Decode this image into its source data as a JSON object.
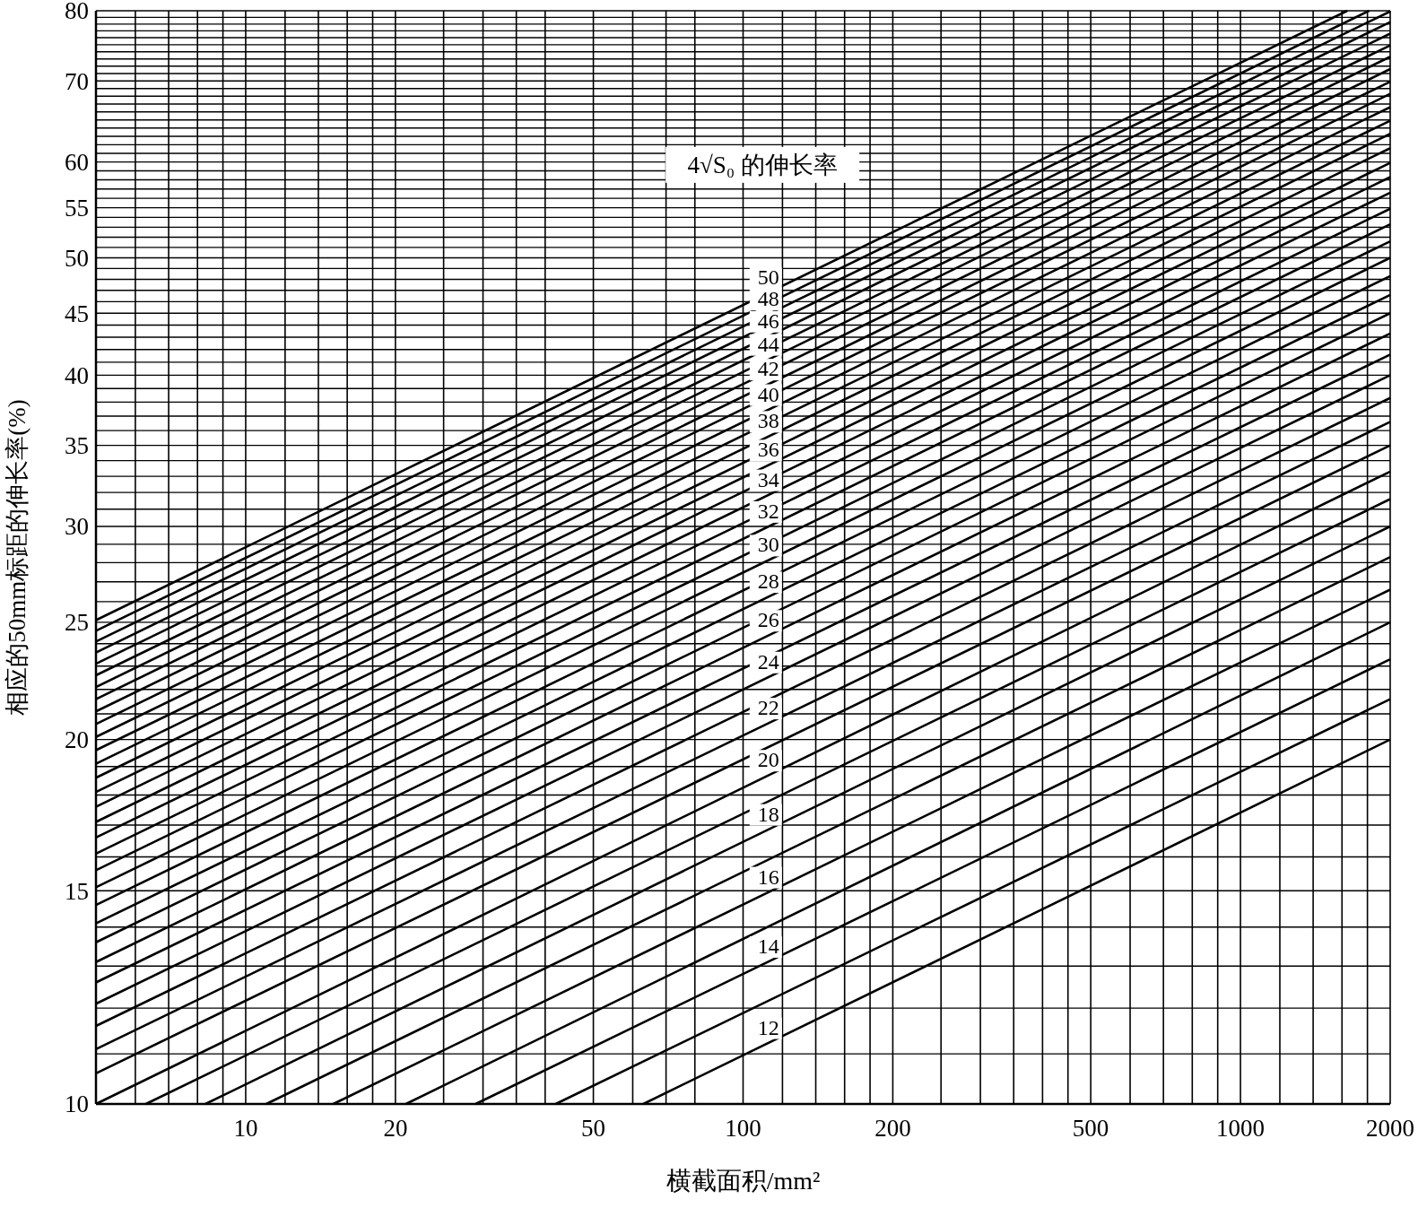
{
  "chart_data": {
    "type": "line",
    "xlabel": "横截面积/mm²",
    "ylabel": "相应的50mm标距的伸长率(%)",
    "annotations": [
      "4√S₀ 的伸长率"
    ],
    "log": "xy",
    "grid": true,
    "xlim": [
      5,
      2000
    ],
    "ylim": [
      10,
      80
    ],
    "xticks": [
      {
        "value": 6,
        "label": null
      },
      {
        "value": 7,
        "label": null
      },
      {
        "value": 8,
        "label": null
      },
      {
        "value": 9,
        "label": null
      },
      10,
      {
        "value": 12,
        "label": null
      },
      {
        "value": 14,
        "label": null
      },
      {
        "value": 16,
        "label": null
      },
      {
        "value": 18,
        "label": null
      },
      20,
      {
        "value": 25,
        "label": null
      },
      {
        "value": 30,
        "label": null
      },
      {
        "value": 35,
        "label": null
      },
      {
        "value": 40,
        "label": null
      },
      50,
      {
        "value": 60,
        "label": null
      },
      {
        "value": 70,
        "label": null
      },
      {
        "value": 80,
        "label": null
      },
      100,
      {
        "value": 120,
        "label": null
      },
      {
        "value": 140,
        "label": null
      },
      {
        "value": 160,
        "label": null
      },
      {
        "value": 180,
        "label": null
      },
      200,
      {
        "value": 250,
        "label": null
      },
      {
        "value": 300,
        "label": null
      },
      {
        "value": 350,
        "label": null
      },
      {
        "value": 400,
        "label": null
      },
      {
        "value": 450,
        "label": null
      },
      500,
      {
        "value": 600,
        "label": null
      },
      {
        "value": 700,
        "label": null
      },
      {
        "value": 800,
        "label": null
      },
      {
        "value": 900,
        "label": null
      },
      1000,
      {
        "value": 1200,
        "label": null
      },
      {
        "value": 1400,
        "label": null
      },
      {
        "value": 1600,
        "label": null
      },
      {
        "value": 1800,
        "label": null
      },
      2000
    ],
    "yticks": [
      10,
      {
        "value": 11,
        "label": null
      },
      {
        "value": 12,
        "label": null
      },
      {
        "value": 13,
        "label": null
      },
      {
        "value": 14,
        "label": null
      },
      15,
      {
        "value": 16,
        "label": null
      },
      {
        "value": 17,
        "label": null
      },
      {
        "value": 18,
        "label": null
      },
      {
        "value": 19,
        "label": null
      },
      20,
      {
        "value": 21,
        "label": null
      },
      {
        "value": 22,
        "label": null
      },
      {
        "value": 23,
        "label": null
      },
      {
        "value": 24,
        "label": null
      },
      25,
      {
        "value": 26,
        "label": null
      },
      {
        "value": 27,
        "label": null
      },
      {
        "value": 28,
        "label": null
      },
      {
        "value": 29,
        "label": null
      },
      30,
      {
        "value": 31,
        "label": null
      },
      {
        "value": 32,
        "label": null
      },
      {
        "value": 33,
        "label": null
      },
      {
        "value": 34,
        "label": null
      },
      35,
      {
        "value": 36,
        "label": null
      },
      {
        "value": 37,
        "label": null
      },
      {
        "value": 38,
        "label": null
      },
      {
        "value": 39,
        "label": null
      },
      40,
      {
        "value": 41,
        "label": null
      },
      {
        "value": 42,
        "label": null
      },
      {
        "value": 43,
        "label": null
      },
      {
        "value": 44,
        "label": null
      },
      45,
      {
        "value": 46,
        "label": null
      },
      {
        "value": 47,
        "label": null
      },
      {
        "value": 48,
        "label": null
      },
      {
        "value": 49,
        "label": null
      },
      50,
      {
        "value": 51,
        "label": null
      },
      {
        "value": 52,
        "label": null
      },
      {
        "value": 53,
        "label": null
      },
      {
        "value": 54,
        "label": null
      },
      55,
      {
        "value": 56,
        "label": null
      },
      {
        "value": 57,
        "label": null
      },
      {
        "value": 58,
        "label": null
      },
      {
        "value": 59,
        "label": null
      },
      60,
      {
        "value": 61,
        "label": null
      },
      {
        "value": 62,
        "label": null
      },
      {
        "value": 63,
        "label": null
      },
      {
        "value": 64,
        "label": null
      },
      {
        "value": 65,
        "label": null
      },
      {
        "value": 66,
        "label": null
      },
      {
        "value": 67,
        "label": null
      },
      {
        "value": 68,
        "label": null
      },
      {
        "value": 69,
        "label": null
      },
      70,
      {
        "value": 71,
        "label": null
      },
      {
        "value": 72,
        "label": null
      },
      {
        "value": 73,
        "label": null
      },
      {
        "value": 74,
        "label": null
      },
      {
        "value": 75,
        "label": null
      },
      {
        "value": 76,
        "label": null
      },
      {
        "value": 77,
        "label": null
      },
      {
        "value": 78,
        "label": null
      },
      {
        "value": 79,
        "label": null
      },
      80
    ],
    "series": [
      {
        "name": "12",
        "color": "#000000",
        "x": [
          63,
          2000
        ],
        "values": [
          10.0,
          20.0
        ]
      },
      {
        "color": "#000000",
        "x": [
          42,
          2000
        ],
        "values": [
          10.0,
          21.6
        ]
      },
      {
        "name": "14",
        "color": "#000000",
        "x": [
          29,
          2000
        ],
        "values": [
          10.0,
          23.3
        ]
      },
      {
        "color": "#000000",
        "x": [
          21,
          2000
        ],
        "values": [
          10.0,
          25.0
        ]
      },
      {
        "name": "16",
        "color": "#000000",
        "x": [
          15,
          2000
        ],
        "values": [
          10.0,
          26.6
        ]
      },
      {
        "color": "#000000",
        "x": [
          11,
          2000
        ],
        "values": [
          10.0,
          28.3
        ]
      },
      {
        "name": "18",
        "color": "#000000",
        "x": [
          8.3,
          2000
        ],
        "values": [
          10.0,
          30.0
        ]
      },
      {
        "color": "#000000",
        "x": [
          6.3,
          2000
        ],
        "values": [
          10.0,
          31.6
        ]
      },
      {
        "name": "20",
        "color": "#000000",
        "x": [
          5,
          2000
        ],
        "values": [
          10.0,
          33.3
        ]
      },
      {
        "color": "#000000",
        "x": [
          5,
          2000
        ],
        "values": [
          10.6,
          35.0
        ]
      },
      {
        "name": "22",
        "color": "#000000",
        "x": [
          5,
          2000
        ],
        "values": [
          11.1,
          36.6
        ]
      },
      {
        "color": "#000000",
        "x": [
          5,
          2000
        ],
        "values": [
          11.6,
          38.3
        ]
      },
      {
        "name": "24",
        "color": "#000000",
        "x": [
          5,
          2000
        ],
        "values": [
          12.1,
          40.0
        ]
      },
      {
        "color": "#000000",
        "x": [
          5,
          2000
        ],
        "values": [
          12.6,
          41.6
        ]
      },
      {
        "name": "26",
        "color": "#000000",
        "x": [
          5,
          2000
        ],
        "values": [
          13.1,
          43.3
        ]
      },
      {
        "color": "#000000",
        "x": [
          5,
          2000
        ],
        "values": [
          13.6,
          45.0
        ]
      },
      {
        "name": "28",
        "color": "#000000",
        "x": [
          5,
          2000
        ],
        "values": [
          14.1,
          46.6
        ]
      },
      {
        "color": "#000000",
        "x": [
          5,
          2000
        ],
        "values": [
          14.6,
          48.3
        ]
      },
      {
        "name": "30",
        "color": "#000000",
        "x": [
          5,
          2000
        ],
        "values": [
          15.1,
          50.0
        ]
      },
      {
        "color": "#000000",
        "x": [
          5,
          2000
        ],
        "values": [
          15.6,
          51.6
        ]
      },
      {
        "name": "32",
        "color": "#000000",
        "x": [
          5,
          2000
        ],
        "values": [
          16.1,
          53.3
        ]
      },
      {
        "color": "#000000",
        "x": [
          5,
          2000
        ],
        "values": [
          16.6,
          54.9
        ]
      },
      {
        "name": "34",
        "color": "#000000",
        "x": [
          5,
          2000
        ],
        "values": [
          17.1,
          56.6
        ]
      },
      {
        "color": "#000000",
        "x": [
          5,
          2000
        ],
        "values": [
          17.6,
          58.3
        ]
      },
      {
        "name": "36",
        "color": "#000000",
        "x": [
          5,
          2000
        ],
        "values": [
          18.1,
          59.9
        ]
      },
      {
        "color": "#000000",
        "x": [
          5,
          2000
        ],
        "values": [
          18.6,
          61.6
        ]
      },
      {
        "name": "38",
        "color": "#000000",
        "x": [
          5,
          2000
        ],
        "values": [
          19.1,
          63.3
        ]
      },
      {
        "color": "#000000",
        "x": [
          5,
          2000
        ],
        "values": [
          19.6,
          64.9
        ]
      },
      {
        "name": "40",
        "color": "#000000",
        "x": [
          5,
          2000
        ],
        "values": [
          20.1,
          66.6
        ]
      },
      {
        "color": "#000000",
        "x": [
          5,
          2000
        ],
        "values": [
          20.6,
          68.3
        ]
      },
      {
        "name": "42",
        "color": "#000000",
        "x": [
          5,
          2000
        ],
        "values": [
          21.1,
          69.9
        ]
      },
      {
        "color": "#000000",
        "x": [
          5,
          2000
        ],
        "values": [
          21.6,
          71.6
        ]
      },
      {
        "name": "44",
        "color": "#000000",
        "x": [
          5,
          2000
        ],
        "values": [
          22.1,
          73.3
        ]
      },
      {
        "color": "#000000",
        "x": [
          5,
          2000
        ],
        "values": [
          22.6,
          74.9
        ]
      },
      {
        "name": "46",
        "color": "#000000",
        "x": [
          5,
          2000
        ],
        "values": [
          23.1,
          76.6
        ]
      },
      {
        "color": "#000000",
        "x": [
          5,
          2000
        ],
        "values": [
          23.6,
          78.3
        ]
      },
      {
        "name": "48",
        "color": "#000000",
        "x": [
          5,
          2000
        ],
        "values": [
          24.1,
          79.9
        ]
      },
      {
        "color": "#000000",
        "x": [
          5,
          1815
        ],
        "values": [
          24.6,
          80.0
        ]
      },
      {
        "name": "50",
        "color": "#000000",
        "x": [
          5,
          1640
        ],
        "values": [
          25.1,
          80.0
        ]
      }
    ]
  }
}
